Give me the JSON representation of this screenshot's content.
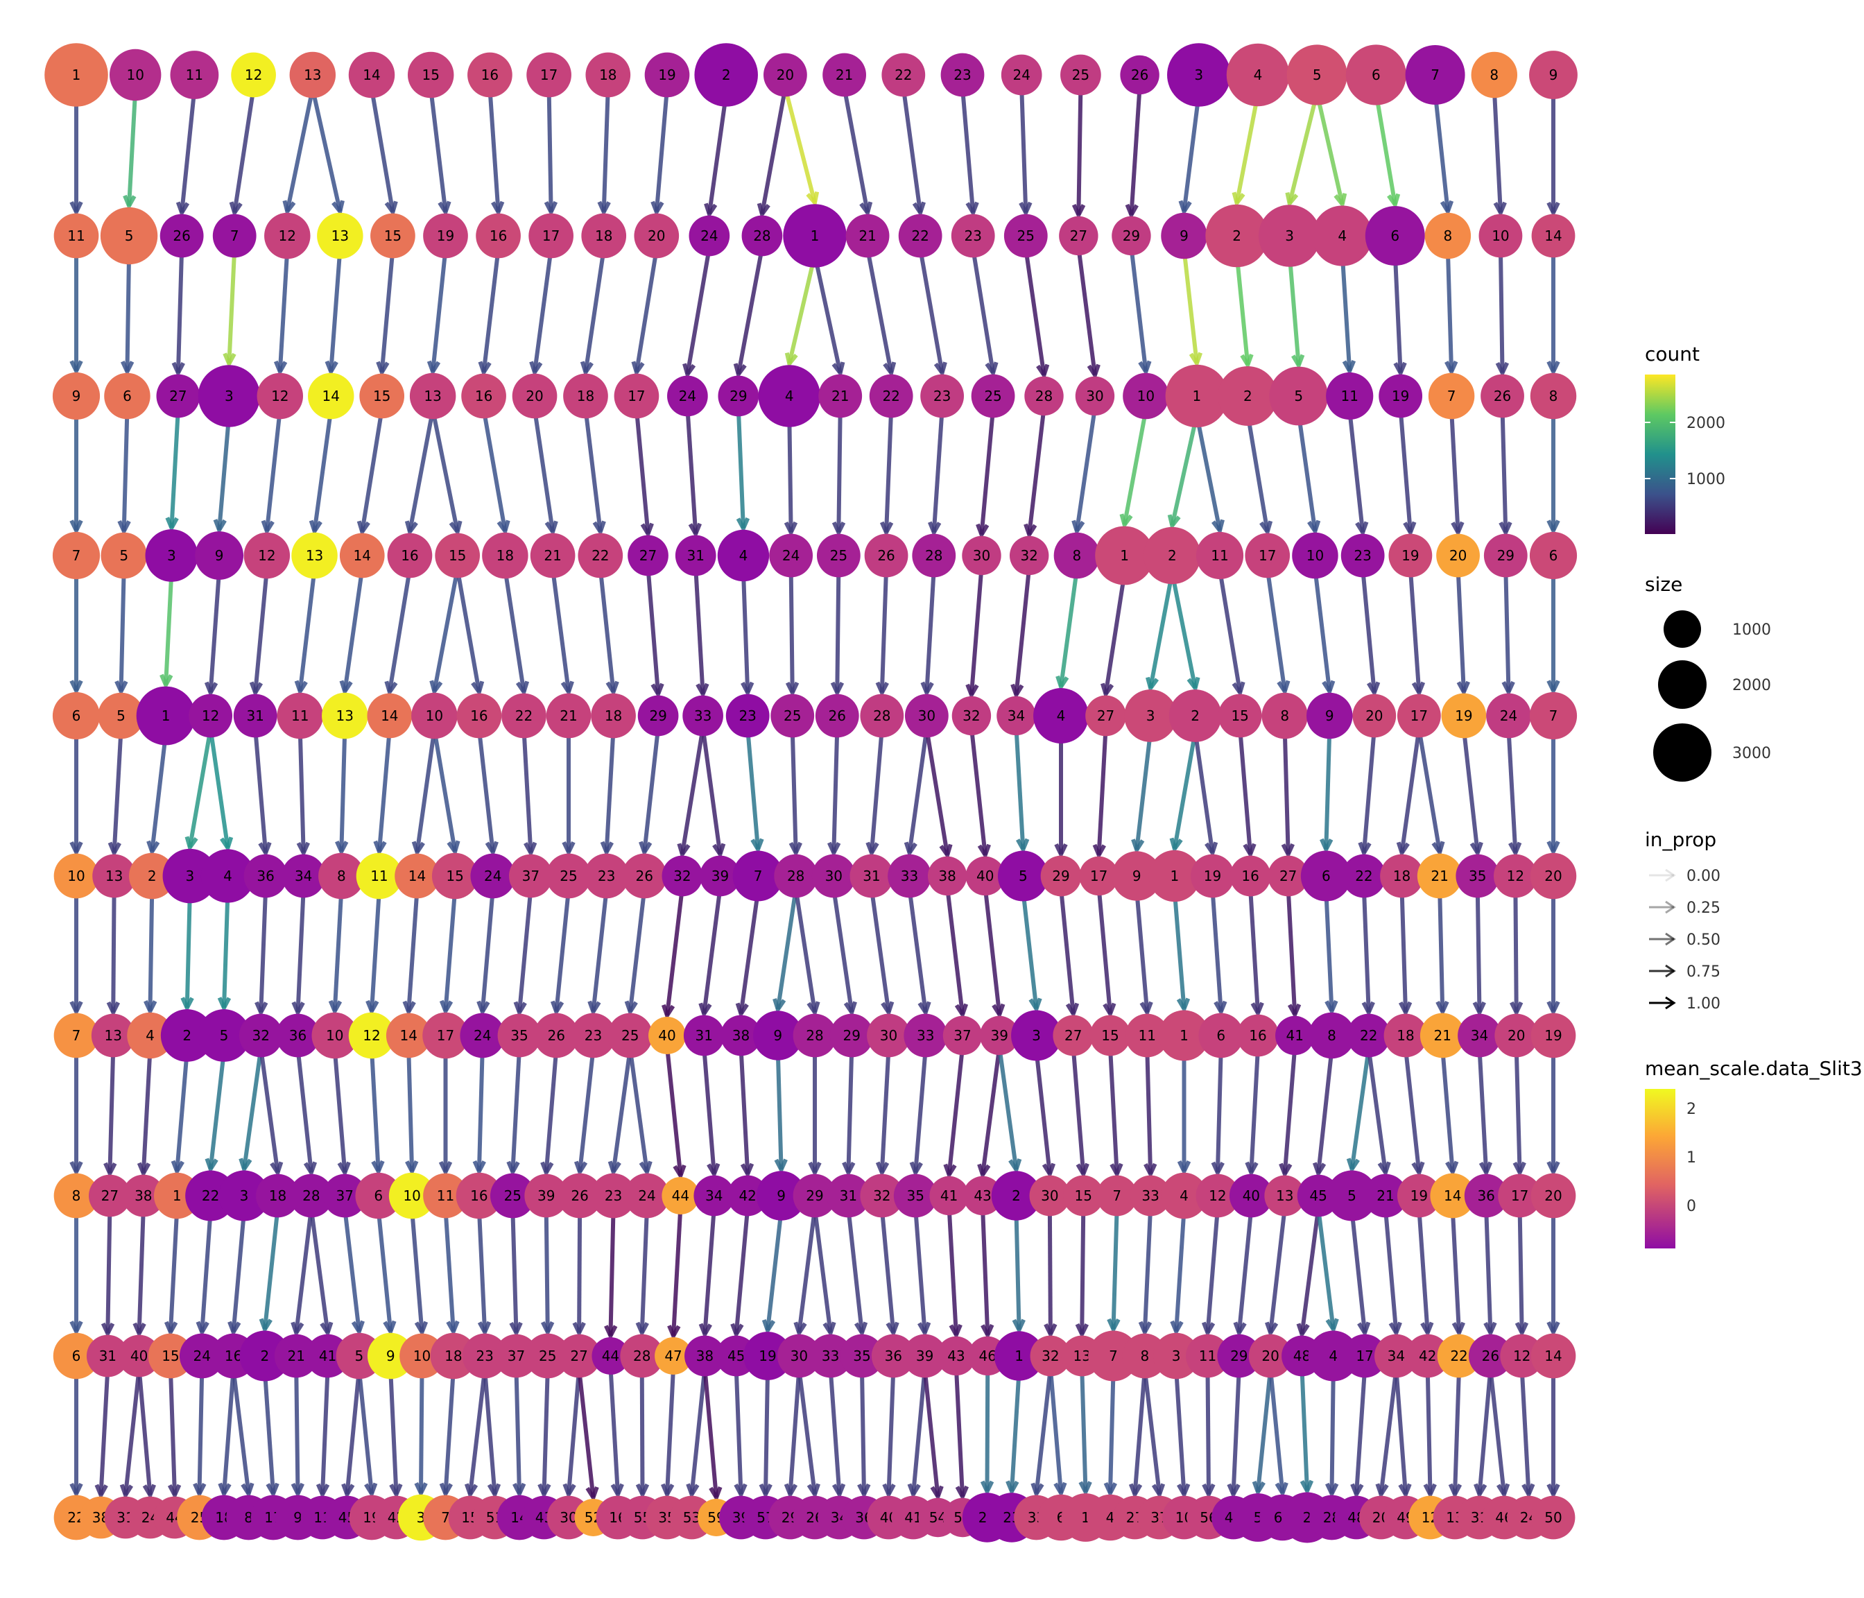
{
  "chart_data": {
    "type": "clustree",
    "title": "",
    "rows": [
      {
        "labels": [
          "1",
          "10",
          "11",
          "12",
          "13",
          "14",
          "15",
          "16",
          "17",
          "18",
          "19",
          "2",
          "20",
          "21",
          "22",
          "23",
          "24",
          "25",
          "26",
          "3",
          "4",
          "5",
          "6",
          "7",
          "8",
          "9"
        ],
        "vals": [
          0.9,
          -0.1,
          -0.1,
          2.3,
          0.7,
          0.2,
          0.2,
          0.3,
          0.2,
          0.2,
          -0.3,
          -0.6,
          -0.3,
          -0.3,
          0.1,
          -0.3,
          0.1,
          0.1,
          -0.4,
          -0.6,
          0.3,
          0.4,
          0.3,
          -0.5,
          1.2,
          0.3
        ],
        "sizes": [
          3000,
          1600,
          1300,
          1000,
          1100,
          1100,
          1100,
          1000,
          1000,
          1000,
          1000,
          3000,
          900,
          900,
          900,
          900,
          700,
          700,
          600,
          3000,
          2900,
          2600,
          2600,
          2500,
          1100,
          1300
        ]
      },
      {
        "labels": [
          "11",
          "5",
          "26",
          "7",
          "12",
          "13",
          "15",
          "19",
          "16",
          "17",
          "18",
          "20",
          "24",
          "28",
          "1",
          "21",
          "22",
          "23",
          "25",
          "27",
          "29",
          "9",
          "2",
          "3",
          "4",
          "6",
          "8",
          "10",
          "14"
        ],
        "vals": [
          0.9,
          0.9,
          -0.5,
          -0.5,
          0.2,
          2.3,
          0.9,
          0.2,
          0.3,
          0.2,
          0.2,
          0.2,
          -0.5,
          -0.5,
          -0.6,
          -0.3,
          -0.3,
          0.1,
          -0.3,
          0.1,
          0.1,
          -0.3,
          0.3,
          0.2,
          0.2,
          -0.5,
          1.2,
          0.2,
          0.3
        ],
        "sizes": [
          1000,
          2200,
          900,
          900,
          1100,
          1100,
          1000,
          1000,
          1000,
          1000,
          1000,
          1000,
          700,
          700,
          3000,
          900,
          900,
          900,
          900,
          600,
          600,
          1100,
          2900,
          2800,
          2600,
          2500,
          1100,
          900,
          900
        ]
      },
      {
        "labels": [
          "9",
          "6",
          "27",
          "3",
          "12",
          "14",
          "15",
          "13",
          "16",
          "20",
          "18",
          "17",
          "24",
          "29",
          "4",
          "21",
          "22",
          "23",
          "25",
          "28",
          "30",
          "10",
          "1",
          "2",
          "5",
          "11",
          "19",
          "7",
          "26",
          "8"
        ],
        "vals": [
          0.9,
          0.9,
          -0.5,
          -0.6,
          0.2,
          2.3,
          0.9,
          0.2,
          0.3,
          0.2,
          0.2,
          0.2,
          -0.5,
          -0.5,
          -0.6,
          -0.3,
          -0.3,
          0.1,
          -0.3,
          0.1,
          0.1,
          -0.3,
          0.3,
          0.3,
          0.2,
          -0.5,
          -0.5,
          1.2,
          0.2,
          0.3
        ],
        "sizes": [
          1200,
          1100,
          900,
          2800,
          1100,
          1100,
          1000,
          1100,
          1000,
          1000,
          1000,
          1000,
          700,
          700,
          2800,
          900,
          900,
          900,
          900,
          600,
          600,
          1100,
          2900,
          2500,
          2400,
          1200,
          900,
          1100,
          900,
          1100
        ]
      },
      {
        "labels": [
          "7",
          "5",
          "3",
          "9",
          "12",
          "13",
          "14",
          "16",
          "15",
          "18",
          "21",
          "22",
          "27",
          "31",
          "4",
          "24",
          "25",
          "26",
          "28",
          "30",
          "32",
          "8",
          "1",
          "2",
          "11",
          "17",
          "10",
          "23",
          "19",
          "20",
          "29",
          "6"
        ],
        "vals": [
          0.9,
          0.9,
          -0.6,
          -0.5,
          0.2,
          2.3,
          0.9,
          0.2,
          0.3,
          0.2,
          0.2,
          0.2,
          -0.5,
          -0.5,
          -0.6,
          -0.3,
          -0.3,
          0.1,
          -0.3,
          0.1,
          0.1,
          -0.3,
          0.3,
          0.3,
          0.2,
          0.2,
          -0.5,
          -0.5,
          0.3,
          1.5,
          0.1,
          0.3
        ],
        "sizes": [
          1200,
          1100,
          1700,
          1300,
          1100,
          1100,
          1000,
          1000,
          1000,
          1100,
          1000,
          1000,
          700,
          700,
          1600,
          900,
          900,
          900,
          900,
          600,
          600,
          1100,
          2400,
          2200,
          1200,
          1000,
          1100,
          900,
          900,
          900,
          900,
          1200
        ]
      },
      {
        "labels": [
          "6",
          "5",
          "1",
          "12",
          "31",
          "11",
          "13",
          "14",
          "10",
          "16",
          "22",
          "21",
          "18",
          "29",
          "33",
          "23",
          "25",
          "26",
          "28",
          "30",
          "32",
          "34",
          "4",
          "27",
          "3",
          "2",
          "15",
          "8",
          "9",
          "20",
          "17",
          "19",
          "24",
          "7"
        ],
        "vals": [
          0.9,
          0.9,
          -0.6,
          -0.5,
          -0.5,
          0.2,
          2.3,
          0.9,
          0.2,
          0.3,
          0.2,
          0.2,
          0.2,
          -0.5,
          -0.5,
          -0.6,
          -0.3,
          -0.3,
          0.1,
          -0.3,
          0.1,
          0.1,
          -0.6,
          0.3,
          0.3,
          0.2,
          0.2,
          0.2,
          -0.5,
          0.3,
          0.3,
          1.5,
          0.1,
          0.3
        ],
        "sizes": [
          1200,
          1100,
          2400,
          900,
          900,
          1100,
          1100,
          1000,
          1100,
          1000,
          1000,
          1000,
          1000,
          700,
          700,
          900,
          900,
          900,
          900,
          900,
          600,
          600,
          2000,
          700,
          1700,
          1700,
          900,
          1100,
          1100,
          900,
          900,
          1000,
          1000,
          1200
        ]
      },
      {
        "labels": [
          "10",
          "13",
          "2",
          "3",
          "4",
          "36",
          "34",
          "8",
          "11",
          "14",
          "15",
          "24",
          "37",
          "25",
          "23",
          "26",
          "32",
          "39",
          "7",
          "28",
          "30",
          "31",
          "33",
          "38",
          "40",
          "5",
          "29",
          "17",
          "9",
          "1",
          "19",
          "16",
          "27",
          "6",
          "22",
          "18",
          "21",
          "35",
          "12",
          "20"
        ],
        "vals": [
          1.3,
          0.2,
          0.9,
          -0.6,
          -0.6,
          -0.5,
          -0.5,
          0.2,
          2.3,
          0.9,
          0.3,
          -0.5,
          0.2,
          0.2,
          0.2,
          0.2,
          -0.5,
          -0.5,
          -0.6,
          -0.3,
          -0.3,
          0.1,
          -0.3,
          0.1,
          0.1,
          -0.6,
          0.3,
          0.3,
          0.3,
          0.3,
          0.2,
          0.2,
          0.2,
          -0.5,
          -0.5,
          0.2,
          1.5,
          -0.3,
          0.2,
          0.3
        ],
        "sizes": [
          1000,
          900,
          1100,
          1900,
          1800,
          900,
          900,
          1100,
          1100,
          1000,
          1100,
          1000,
          900,
          1000,
          1000,
          1000,
          700,
          700,
          1500,
          900,
          900,
          900,
          900,
          600,
          600,
          1500,
          700,
          600,
          1400,
          1600,
          900,
          700,
          700,
          1500,
          900,
          900,
          1000,
          900,
          900,
          1100
        ]
      },
      {
        "labels": [
          "7",
          "13",
          "4",
          "2",
          "5",
          "32",
          "36",
          "10",
          "12",
          "14",
          "17",
          "24",
          "35",
          "26",
          "23",
          "25",
          "40",
          "31",
          "38",
          "9",
          "28",
          "29",
          "30",
          "33",
          "37",
          "39",
          "3",
          "27",
          "15",
          "11",
          "1",
          "6",
          "16",
          "41",
          "8",
          "22",
          "18",
          "21",
          "34",
          "20",
          "19"
        ],
        "vals": [
          1.3,
          0.2,
          0.9,
          -0.6,
          -0.6,
          -0.5,
          -0.5,
          0.2,
          2.3,
          0.9,
          0.3,
          -0.5,
          0.2,
          0.2,
          0.2,
          0.2,
          1.5,
          -0.5,
          -0.5,
          -0.6,
          -0.3,
          -0.3,
          0.1,
          -0.3,
          0.1,
          0.1,
          -0.6,
          0.3,
          0.3,
          0.3,
          0.3,
          0.2,
          0.2,
          -0.5,
          -0.5,
          -0.5,
          0.2,
          1.5,
          -0.3,
          0.2,
          0.3
        ],
        "sizes": [
          1000,
          900,
          1100,
          1700,
          1700,
          900,
          900,
          1100,
          1100,
          1000,
          1100,
          1000,
          900,
          1000,
          1000,
          1000,
          500,
          700,
          700,
          1400,
          900,
          900,
          900,
          900,
          600,
          600,
          1500,
          700,
          700,
          900,
          1500,
          1000,
          800,
          600,
          1100,
          900,
          900,
          1000,
          900,
          900,
          1000
        ]
      },
      {
        "labels": [
          "8",
          "27",
          "38",
          "1",
          "22",
          "3",
          "18",
          "28",
          "37",
          "6",
          "10",
          "11",
          "16",
          "25",
          "39",
          "26",
          "23",
          "24",
          "44",
          "34",
          "42",
          "9",
          "29",
          "31",
          "32",
          "35",
          "41",
          "43",
          "2",
          "30",
          "15",
          "7",
          "33",
          "4",
          "12",
          "40",
          "13",
          "45",
          "5",
          "21",
          "19",
          "14",
          "36",
          "17",
          "20"
        ],
        "vals": [
          1.3,
          0.2,
          0.2,
          0.9,
          -0.6,
          -0.6,
          -0.5,
          -0.5,
          -0.5,
          0.2,
          2.3,
          0.9,
          0.3,
          -0.5,
          0.2,
          0.2,
          0.2,
          0.2,
          1.5,
          -0.5,
          -0.5,
          -0.6,
          -0.3,
          -0.3,
          0.1,
          -0.3,
          0.1,
          0.1,
          -0.6,
          0.3,
          0.3,
          0.3,
          0.3,
          0.3,
          0.2,
          -0.5,
          0.2,
          -0.5,
          -0.5,
          -0.5,
          0.2,
          1.5,
          -0.3,
          0.2,
          0.3
        ],
        "sizes": [
          1000,
          800,
          800,
          1100,
          1500,
          1500,
          900,
          900,
          900,
          1100,
          1100,
          1000,
          1100,
          1000,
          900,
          1000,
          1000,
          1000,
          500,
          700,
          700,
          1400,
          900,
          900,
          900,
          900,
          600,
          600,
          1400,
          700,
          700,
          700,
          700,
          1100,
          900,
          900,
          700,
          800,
          1500,
          900,
          900,
          1000,
          900,
          900,
          1000
        ]
      },
      {
        "labels": [
          "6",
          "31",
          "40",
          "15",
          "24",
          "16",
          "2",
          "21",
          "41",
          "5",
          "9",
          "10",
          "18",
          "23",
          "37",
          "25",
          "27",
          "44",
          "28",
          "47",
          "38",
          "45",
          "19",
          "30",
          "33",
          "35",
          "36",
          "39",
          "43",
          "46",
          "1",
          "32",
          "13",
          "7",
          "8",
          "3",
          "11",
          "29",
          "20",
          "48",
          "4",
          "17",
          "34",
          "42",
          "22",
          "26",
          "12",
          "14"
        ],
        "vals": [
          1.3,
          0.2,
          0.2,
          0.9,
          -0.5,
          -0.5,
          -0.6,
          -0.5,
          -0.5,
          0.2,
          2.3,
          0.9,
          0.3,
          0.2,
          0.2,
          0.2,
          0.2,
          -0.5,
          0.2,
          1.5,
          -0.5,
          -0.5,
          -0.6,
          -0.3,
          -0.3,
          -0.3,
          0.1,
          0.1,
          0.1,
          0.1,
          -0.6,
          0.3,
          0.3,
          0.3,
          0.3,
          0.3,
          0.2,
          -0.5,
          0.2,
          -0.5,
          -0.5,
          -0.5,
          0.2,
          0.2,
          1.5,
          -0.3,
          0.2,
          0.3
        ],
        "sizes": [
          1100,
          800,
          800,
          1000,
          1000,
          1000,
          1500,
          900,
          900,
          1100,
          1100,
          1000,
          1100,
          1000,
          900,
          1000,
          900,
          500,
          900,
          500,
          700,
          700,
          1300,
          900,
          900,
          900,
          900,
          900,
          600,
          600,
          1400,
          700,
          700,
          1500,
          1000,
          1100,
          900,
          900,
          900,
          700,
          1500,
          900,
          900,
          900,
          900,
          900,
          900,
          1000
        ]
      },
      {
        "labels": [
          "22",
          "38",
          "31",
          "24",
          "44",
          "25",
          "18",
          "8",
          "17",
          "9",
          "11",
          "45",
          "19",
          "42",
          "3",
          "7",
          "15",
          "51",
          "14",
          "43",
          "30",
          "52",
          "16",
          "55",
          "35",
          "53",
          "59",
          "39",
          "57",
          "29",
          "26",
          "34",
          "36",
          "40",
          "41",
          "54",
          "58",
          "21",
          "23",
          "33",
          "6",
          "1",
          "4",
          "27",
          "37",
          "10",
          "56",
          "47",
          "5",
          "60",
          "2",
          "28",
          "48",
          "20",
          "49",
          "12",
          "13",
          "31",
          "46",
          "24",
          "50"
        ],
        "vals": [
          1.3,
          1.3,
          0.3,
          0.3,
          0.3,
          1.3,
          -0.5,
          -0.5,
          -0.5,
          -0.5,
          -0.5,
          -0.5,
          0.2,
          0.2,
          2.3,
          0.9,
          0.3,
          0.3,
          -0.5,
          -0.5,
          0.2,
          1.5,
          0.2,
          0.2,
          0.3,
          0.3,
          1.5,
          -0.5,
          -0.5,
          -0.3,
          -0.3,
          -0.3,
          -0.3,
          0.1,
          0.1,
          0.1,
          0.1,
          -0.6,
          -0.6,
          0.3,
          0.3,
          0.3,
          0.3,
          0.3,
          0.3,
          0.2,
          0.2,
          -0.5,
          -0.5,
          -0.5,
          -0.5,
          -0.5,
          -0.5,
          0.2,
          0.2,
          1.5,
          0.3,
          0.3,
          0.3,
          0.3,
          0.3
        ],
        "sizes": [
          1000,
          800,
          800,
          800,
          800,
          1000,
          1000,
          1000,
          1000,
          1000,
          900,
          900,
          1000,
          900,
          1100,
          1000,
          900,
          900,
          1000,
          900,
          900,
          500,
          900,
          900,
          900,
          900,
          500,
          900,
          900,
          900,
          900,
          900,
          900,
          900,
          900,
          600,
          600,
          1400,
          1400,
          1000,
          1100,
          1300,
          1100,
          900,
          900,
          900,
          900,
          900,
          1300,
          1100,
          1500,
          1000,
          900,
          900,
          900,
          900,
          900,
          900,
          900,
          900,
          900
        ]
      }
    ],
    "legend": {
      "count": {
        "title": "count",
        "ticks": [
          "2000",
          "1000"
        ],
        "colors": [
          "#fde725",
          "#35b779",
          "#21918c",
          "#3b528b",
          "#440154"
        ]
      },
      "size": {
        "title": "size",
        "ticks": [
          "1000",
          "2000",
          "3000"
        ]
      },
      "in_prop": {
        "title": "in_prop",
        "ticks": [
          "0.00",
          "0.25",
          "0.50",
          "0.75",
          "1.00"
        ]
      },
      "mean": {
        "title": "mean_scale.data_Slit3",
        "ticks": [
          "2",
          "1",
          "0"
        ],
        "colors": [
          "#fde725",
          "#f89540",
          "#cc4778",
          "#7e03a8"
        ]
      }
    }
  }
}
